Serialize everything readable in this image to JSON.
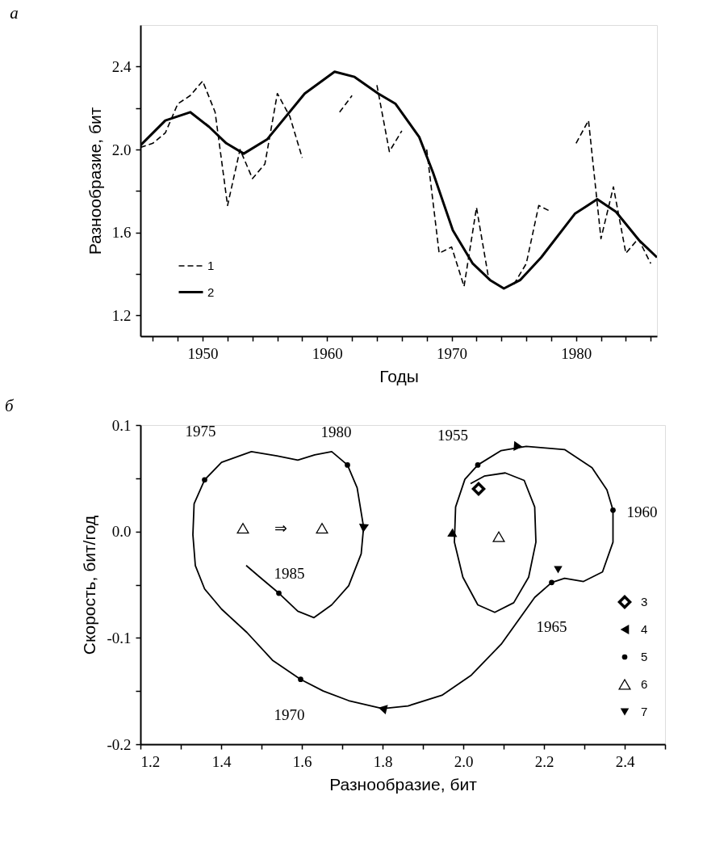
{
  "chart_data": [
    {
      "type": "line",
      "title": "а",
      "xlabel": "Годы",
      "ylabel": "Разнообразие, бит",
      "x": [
        1945,
        1946,
        1947,
        1948,
        1949,
        1950,
        1951,
        1952,
        1953,
        1954,
        1955,
        1956,
        1957,
        1958,
        1959,
        1960,
        1961,
        1962,
        1963,
        1964,
        1965,
        1966,
        1967,
        1968,
        1969,
        1970,
        1971,
        1972,
        1973,
        1974,
        1975,
        1976,
        1977,
        1978,
        1979,
        1980,
        1981,
        1982,
        1983,
        1984,
        1985,
        1986
      ],
      "series": [
        {
          "name": "1",
          "color": "#000000",
          "line_style": "dashed",
          "values": [
            2.01,
            2.03,
            2.08,
            2.22,
            2.26,
            2.33,
            2.18,
            1.73,
            2.0,
            1.86,
            1.93,
            2.27,
            2.16,
            1.96,
            null,
            null,
            2.18,
            2.26,
            null,
            2.31,
            1.99,
            2.09,
            null,
            2.0,
            1.5,
            1.53,
            1.34,
            1.72,
            1.37,
            null,
            1.35,
            1.45,
            1.73,
            1.7,
            null,
            2.03,
            2.14,
            1.57,
            1.82,
            1.5,
            1.57,
            1.45
          ]
        },
        {
          "name": "2",
          "color": "#000000",
          "line_style": "solid",
          "x": [
            1945,
            1947,
            1949,
            1950.5,
            1951.9,
            1953.3,
            1955.2,
            1958.2,
            1960.6,
            1962.2,
            1964.1,
            1965.5,
            1967.4,
            1968.5,
            1970.1,
            1971.7,
            1973.1,
            1974.2,
            1975.5,
            1977.2,
            1979.9,
            1981.7,
            1983.2,
            1985.1,
            1986.5
          ],
          "values": [
            2.02,
            2.14,
            2.18,
            2.11,
            2.03,
            1.98,
            2.05,
            2.27,
            2.375,
            2.35,
            2.27,
            2.22,
            2.06,
            1.89,
            1.61,
            1.45,
            1.37,
            1.33,
            1.37,
            1.48,
            1.69,
            1.76,
            1.7,
            1.56,
            1.48
          ]
        }
      ],
      "xlim": [
        1945,
        1986.5
      ],
      "xticks": [
        {
          "value": 1946,
          "label": null
        },
        {
          "value": 1948,
          "label": null
        },
        1950,
        {
          "value": 1952,
          "label": null
        },
        {
          "value": 1954,
          "label": null
        },
        {
          "value": 1956,
          "label": null
        },
        {
          "value": 1958,
          "label": null
        },
        1960,
        {
          "value": 1962,
          "label": null
        },
        {
          "value": 1964,
          "label": null
        },
        {
          "value": 1966,
          "label": null
        },
        {
          "value": 1968,
          "label": null
        },
        1970,
        {
          "value": 1972,
          "label": null
        },
        {
          "value": 1974,
          "label": null
        },
        {
          "value": 1976,
          "label": null
        },
        {
          "value": 1978,
          "label": null
        },
        1980,
        {
          "value": 1982,
          "label": null
        },
        {
          "value": 1984,
          "label": null
        },
        {
          "value": 1986,
          "label": null
        }
      ],
      "ylim": [
        1.1,
        2.6
      ],
      "yticks": [
        1.2,
        {
          "value": 1.4,
          "label": null
        },
        1.6,
        {
          "value": 1.8,
          "label": null
        },
        {
          "value": 2.0,
          "label": "2.0"
        },
        {
          "value": 2.2,
          "label": null
        },
        2.4
      ],
      "grid": false,
      "legend": "bottom left"
    },
    {
      "type": "line",
      "title": "б",
      "xlabel": "Разнообразие, бит",
      "ylabel": "Скорость, бит/год",
      "series": [
        {
          "type": "line",
          "color": "#000000",
          "line_style": "solid",
          "x": [
            2.018,
            2.052,
            2.104,
            2.151,
            2.177,
            2.18,
            2.162,
            2.125,
            2.078,
            2.036,
            1.999,
            1.978,
            1.981,
            2.004,
            2.036,
            2.094,
            2.156,
            2.251,
            2.319,
            2.356,
            2.371,
            2.371,
            2.345,
            2.298,
            2.251,
            2.219,
            2.177,
            2.094,
            2.02,
            1.947,
            1.863,
            1.8,
            1.716,
            1.653,
            1.597,
            1.527,
            1.464,
            1.401,
            1.359,
            1.336,
            1.33,
            1.333,
            1.359,
            1.401,
            1.475,
            1.538,
            1.59,
            1.632,
            1.674,
            1.713,
            1.737,
            1.753,
            1.747,
            1.716,
            1.674,
            1.63,
            1.59,
            1.543,
            1.496,
            1.462
          ],
          "values": [
            0.045,
            0.052,
            0.055,
            0.048,
            0.023,
            -0.01,
            -0.043,
            -0.067,
            -0.076,
            -0.069,
            -0.043,
            -0.01,
            0.023,
            0.049,
            0.0625,
            0.076,
            0.08,
            0.077,
            0.06,
            0.039,
            0.02,
            -0.01,
            -0.038,
            -0.047,
            -0.044,
            -0.048,
            -0.062,
            -0.106,
            -0.135,
            -0.154,
            -0.164,
            -0.1665,
            -0.159,
            -0.15,
            -0.139,
            -0.121,
            -0.095,
            -0.073,
            -0.054,
            -0.032,
            -0.003,
            0.026,
            0.0485,
            0.065,
            0.075,
            0.071,
            0.067,
            0.072,
            0.075,
            0.0625,
            0.041,
            0.004,
            -0.021,
            -0.051,
            -0.069,
            -0.081,
            -0.075,
            -0.058,
            -0.043,
            -0.032
          ]
        },
        {
          "name": "3",
          "type": "scatter",
          "marker": "diamond",
          "color": "#000000",
          "x": [
            2.038
          ],
          "values": [
            0.04
          ]
        },
        {
          "name": "4",
          "type": "scatter",
          "marker": "triangle-left",
          "color": "#000000",
          "x": [
            2.136,
            1.8,
            1.753,
            1.973
          ],
          "values": [
            0.08,
            -0.1665,
            0.003,
            -0.001
          ]
        },
        {
          "name": "5",
          "type": "scatter",
          "marker": "circle",
          "color": "#000000",
          "x": [
            2.036,
            2.371,
            2.219,
            1.597,
            1.359,
            1.713,
            1.543
          ],
          "values": [
            0.0625,
            0.02,
            -0.048,
            -0.139,
            0.0485,
            0.0625,
            -0.058
          ]
        },
        {
          "name": "6",
          "type": "scatter",
          "marker": "triangle",
          "color": "#000000",
          "x": [
            1.454,
            1.65,
            2.088
          ],
          "values": [
            0.003,
            0.003,
            -0.005
          ]
        },
        {
          "name": "7",
          "type": "scatter",
          "marker": "triangle-down",
          "color": "#000000",
          "x": [
            2.235
          ],
          "values": [
            -0.036
          ]
        }
      ],
      "annotations": [
        {
          "text": "1955",
          "x": 2.036,
          "y": 0.0625
        },
        {
          "text": "1960",
          "x": 2.371,
          "y": 0.02
        },
        {
          "text": "1965",
          "x": 2.219,
          "y": -0.048
        },
        {
          "text": "1970",
          "x": 1.597,
          "y": -0.139
        },
        {
          "text": "1975",
          "x": 1.359,
          "y": 0.0485
        },
        {
          "text": "1980",
          "x": 1.713,
          "y": 0.0625
        },
        {
          "text": "1985",
          "x": 1.543,
          "y": -0.058
        },
        {
          "text": "⇒",
          "x": 1.454,
          "y": 0.003
        }
      ],
      "xlim": [
        1.2,
        2.5
      ],
      "xticks": [
        1.2,
        {
          "value": 1.3,
          "label": null
        },
        1.4,
        {
          "value": 1.5,
          "label": null
        },
        1.6,
        {
          "value": 1.7,
          "label": null
        },
        1.8,
        {
          "value": 1.9,
          "label": null
        },
        {
          "value": 2.0,
          "label": "2.0"
        },
        {
          "value": 2.1,
          "label": null
        },
        2.2,
        {
          "value": 2.3,
          "label": null
        },
        2.4,
        {
          "value": 2.5,
          "label": null
        }
      ],
      "ylim": [
        -0.2,
        0.1
      ],
      "yticks": [
        -0.2,
        {
          "value": -0.15,
          "label": null
        },
        -0.1,
        {
          "value": -0.05,
          "label": null
        },
        {
          "value": 0,
          "label": "0.0"
        },
        {
          "value": 0.05,
          "label": null
        },
        0.1
      ],
      "grid": false,
      "legend": "bottom right"
    }
  ]
}
